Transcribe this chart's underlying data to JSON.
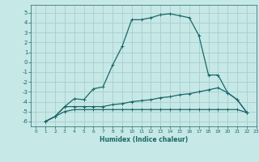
{
  "xlabel": "Humidex (Indice chaleur)",
  "background_color": "#c6e8e6",
  "grid_color": "#a8cece",
  "line_color": "#1a6868",
  "xlim": [
    -0.5,
    23
  ],
  "ylim": [
    -6.5,
    5.8
  ],
  "yticks": [
    -6,
    -5,
    -4,
    -3,
    -2,
    -1,
    0,
    1,
    2,
    3,
    4,
    5
  ],
  "xticks": [
    0,
    1,
    2,
    3,
    4,
    5,
    6,
    7,
    8,
    9,
    10,
    11,
    12,
    13,
    14,
    15,
    16,
    17,
    18,
    19,
    20,
    21,
    22,
    23
  ],
  "line1_x": [
    1,
    2,
    3,
    4,
    5,
    6,
    7,
    8,
    9,
    10,
    11,
    12,
    13,
    14,
    15,
    16,
    17,
    18,
    19,
    20,
    21,
    22
  ],
  "line1_y": [
    -6.0,
    -5.5,
    -4.5,
    -3.7,
    -3.8,
    -2.7,
    -2.5,
    -0.3,
    1.6,
    4.3,
    4.3,
    4.5,
    4.8,
    4.9,
    4.7,
    4.5,
    2.7,
    -1.3,
    -1.3,
    -3.1,
    -3.8,
    -5.1
  ],
  "line2_x": [
    1,
    2,
    3,
    4,
    5,
    6,
    7,
    8,
    9,
    10,
    11,
    12,
    13,
    14,
    15,
    16,
    17,
    18,
    19,
    20,
    21,
    22
  ],
  "line2_y": [
    -6.0,
    -5.5,
    -4.5,
    -4.5,
    -4.5,
    -4.5,
    -4.5,
    -4.3,
    -4.2,
    -4.0,
    -3.9,
    -3.8,
    -3.6,
    -3.5,
    -3.3,
    -3.2,
    -3.0,
    -2.8,
    -2.6,
    -3.1,
    -3.8,
    -5.1
  ],
  "line3_x": [
    1,
    2,
    3,
    4,
    5,
    6,
    7,
    8,
    9,
    10,
    11,
    12,
    13,
    14,
    15,
    16,
    17,
    18,
    19,
    20,
    21,
    22
  ],
  "line3_y": [
    -6.0,
    -5.5,
    -5.0,
    -4.8,
    -4.8,
    -4.8,
    -4.8,
    -4.8,
    -4.8,
    -4.8,
    -4.8,
    -4.8,
    -4.8,
    -4.8,
    -4.8,
    -4.8,
    -4.8,
    -4.8,
    -4.8,
    -4.8,
    -4.8,
    -5.1
  ]
}
